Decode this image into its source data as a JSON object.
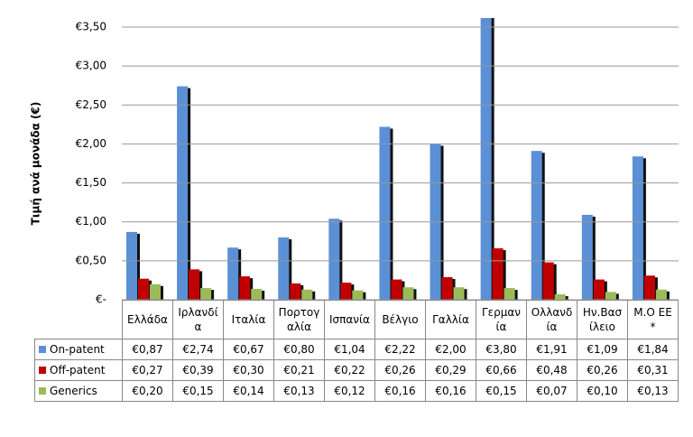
{
  "chart_data": {
    "type": "bar",
    "y_label": "Τιμή ανά μονάδα (€)",
    "categories": [
      "Ελλάδα",
      "Ιρλανδία",
      "Ιταλία",
      "Πορτογαλία",
      "Ισπανία",
      "Βέλγιο",
      "Γαλλία",
      "Γερμανία",
      "Ολλανδία",
      "Ην.Βασίλειο",
      "Μ.Ο ΕΕ*"
    ],
    "series": [
      {
        "name": "On-patent",
        "color": "#5b8fd6",
        "values": [
          0.87,
          2.74,
          0.67,
          0.8,
          1.04,
          2.22,
          2.0,
          3.8,
          1.91,
          1.09,
          1.84
        ],
        "value_labels": [
          "€0,87",
          "€2,74",
          "€0,67",
          "€0,80",
          "€1,04",
          "€2,22",
          "€2,00",
          "€3,80",
          "€1,91",
          "€1,09",
          "€1,84"
        ]
      },
      {
        "name": "Off-patent",
        "color": "#c00000",
        "values": [
          0.27,
          0.39,
          0.3,
          0.21,
          0.22,
          0.26,
          0.29,
          0.66,
          0.48,
          0.26,
          0.31
        ],
        "value_labels": [
          "€0,27",
          "€0,39",
          "€0,30",
          "€0,21",
          "€0,22",
          "€0,26",
          "€0,29",
          "€0,66",
          "€0,48",
          "€0,26",
          "€0,31"
        ]
      },
      {
        "name": "Generics",
        "color": "#9bbb59",
        "values": [
          0.2,
          0.15,
          0.14,
          0.13,
          0.12,
          0.16,
          0.16,
          0.15,
          0.07,
          0.1,
          0.13
        ],
        "value_labels": [
          "€0,20",
          "€0,15",
          "€0,14",
          "€0,13",
          "€0,12",
          "€0,16",
          "€0,16",
          "€0,15",
          "€0,07",
          "€0,10",
          "€0,13"
        ]
      }
    ],
    "ylim": [
      0,
      3.5
    ],
    "yticks": [
      {
        "value": 0,
        "label": "€-"
      },
      {
        "value": 0.5,
        "label": "€0,50"
      },
      {
        "value": 1,
        "label": "€1,00"
      },
      {
        "value": 1.5,
        "label": "€1,50"
      },
      {
        "value": 2,
        "label": "€2,00"
      },
      {
        "value": 2.5,
        "label": "€2,50"
      },
      {
        "value": 3,
        "label": "€3,00"
      },
      {
        "value": 3.5,
        "label": "€3,50"
      }
    ],
    "grid": true
  }
}
